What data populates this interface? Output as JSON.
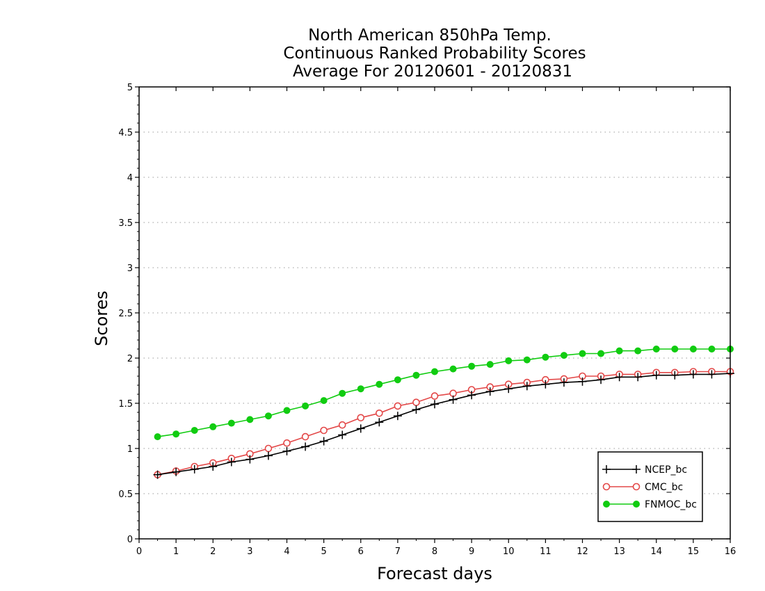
{
  "chart_data": {
    "type": "line",
    "title": [
      "North American 850hPa Temp.",
      "Continuous Ranked Probability Scores",
      "Average For 20120601 - 20120831"
    ],
    "xlabel": "Forecast days",
    "ylabel": "Scores",
    "xlim": [
      0,
      16
    ],
    "ylim": [
      0,
      5
    ],
    "xticks": [
      "0",
      "1",
      "2",
      "3",
      "4",
      "5",
      "6",
      "7",
      "8",
      "9",
      "10",
      "11",
      "12",
      "13",
      "14",
      "15",
      "16"
    ],
    "yticks": [
      "0",
      "0.5",
      "1",
      "1.5",
      "2",
      "2.5",
      "3",
      "3.5",
      "4",
      "4.5",
      "5"
    ],
    "grid": true,
    "legend_position": "bottom-right",
    "x": [
      0.5,
      1,
      1.5,
      2,
      2.5,
      3,
      3.5,
      4,
      4.5,
      5,
      5.5,
      6,
      6.5,
      7,
      7.5,
      8,
      8.5,
      9,
      9.5,
      10,
      10.5,
      11,
      11.5,
      12,
      12.5,
      13,
      13.5,
      14,
      14.5,
      15,
      15.5,
      16
    ],
    "series": [
      {
        "name": "NCEP_bc",
        "color": "#000000",
        "marker": "plus",
        "values": [
          0.71,
          0.74,
          0.77,
          0.8,
          0.85,
          0.88,
          0.92,
          0.97,
          1.02,
          1.08,
          1.15,
          1.22,
          1.29,
          1.36,
          1.43,
          1.49,
          1.54,
          1.59,
          1.63,
          1.66,
          1.69,
          1.71,
          1.73,
          1.74,
          1.76,
          1.79,
          1.79,
          1.81,
          1.81,
          1.82,
          1.82,
          1.83
        ]
      },
      {
        "name": "CMC_bc",
        "color": "#e34848",
        "marker": "open-circle",
        "values": [
          0.71,
          0.75,
          0.8,
          0.84,
          0.89,
          0.94,
          1.0,
          1.06,
          1.13,
          1.2,
          1.26,
          1.34,
          1.39,
          1.47,
          1.51,
          1.58,
          1.61,
          1.65,
          1.68,
          1.71,
          1.73,
          1.76,
          1.77,
          1.8,
          1.8,
          1.82,
          1.82,
          1.84,
          1.84,
          1.85,
          1.85,
          1.85
        ]
      },
      {
        "name": "FNMOC_bc",
        "color": "#11cc11",
        "marker": "filled-circle",
        "values": [
          1.13,
          1.16,
          1.2,
          1.24,
          1.28,
          1.32,
          1.36,
          1.42,
          1.47,
          1.53,
          1.61,
          1.66,
          1.71,
          1.76,
          1.81,
          1.85,
          1.88,
          1.91,
          1.93,
          1.97,
          1.98,
          2.01,
          2.03,
          2.05,
          2.05,
          2.08,
          2.08,
          2.1,
          2.1,
          2.1,
          2.1,
          2.1
        ]
      }
    ]
  }
}
